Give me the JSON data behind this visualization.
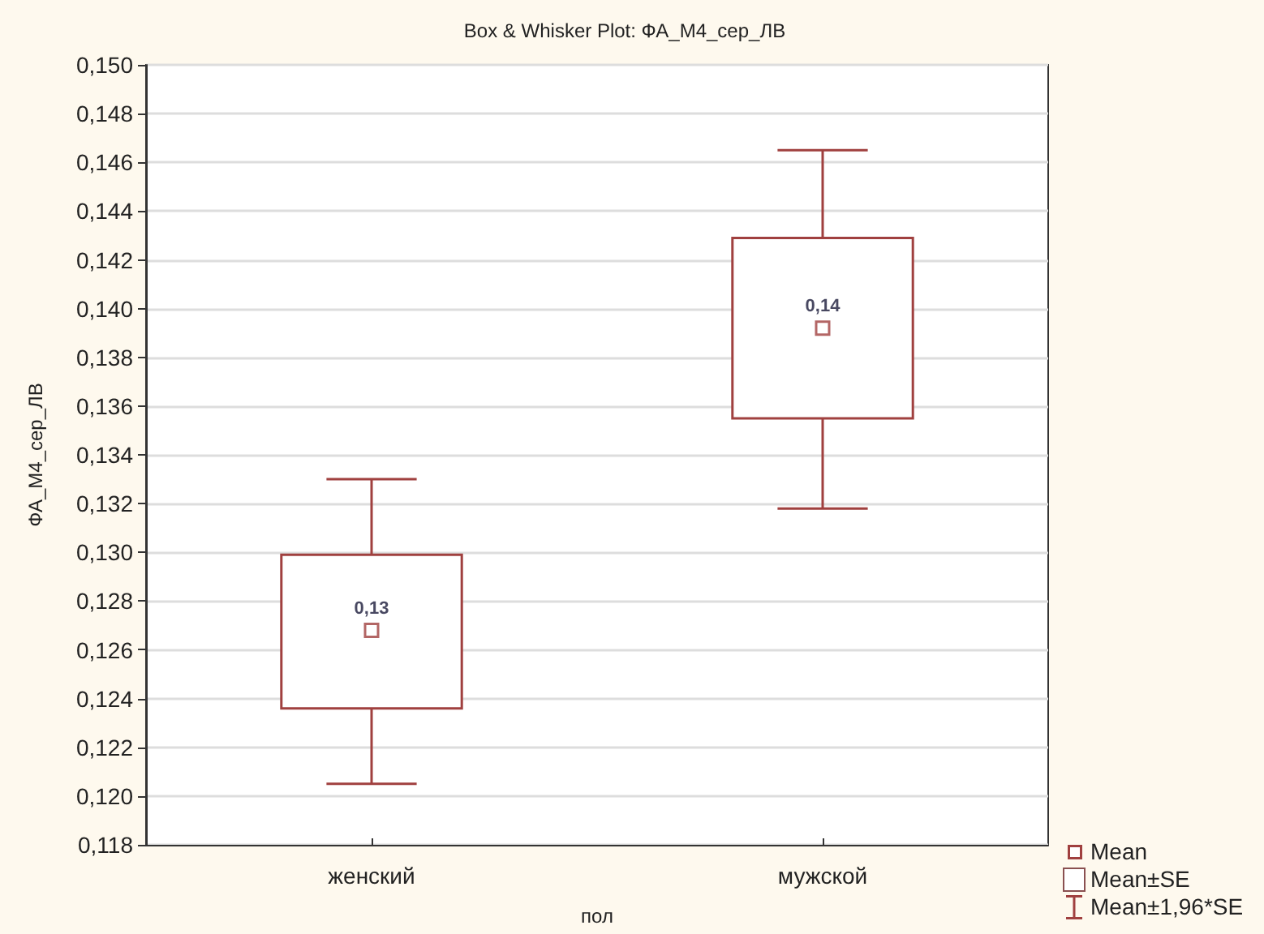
{
  "chart_data": {
    "type": "box",
    "title": "Box & Whisker Plot: ФА_М4_сер_ЛВ",
    "xlabel": "пол",
    "ylabel": "ФА_М4_сер_ЛВ",
    "categories": [
      "женский",
      "мужской"
    ],
    "boxes": [
      {
        "low": 0.1205,
        "q1": 0.1236,
        "q3": 0.1299,
        "high": 0.133,
        "mean": 0.1268
      },
      {
        "low": 0.1318,
        "q1": 0.1355,
        "q3": 0.1429,
        "high": 0.1465,
        "mean": 0.1392
      }
    ],
    "value_labels": [
      "0,13",
      "0,14"
    ],
    "color": "#a0403f",
    "annotations": [
      "Mean",
      "Mean±SE",
      "Mean±1,96*SE"
    ],
    "ylim": [
      0.118,
      0.15
    ],
    "yticks": [
      {
        "value": 0.118,
        "label": "0,118"
      },
      {
        "value": 0.12,
        "label": "0,120"
      },
      {
        "value": 0.122,
        "label": "0,122"
      },
      {
        "value": 0.124,
        "label": "0,124"
      },
      {
        "value": 0.126,
        "label": "0,126"
      },
      {
        "value": 0.128,
        "label": "0,128"
      },
      {
        "value": 0.13,
        "label": "0,130"
      },
      {
        "value": 0.132,
        "label": "0,132"
      },
      {
        "value": 0.134,
        "label": "0,134"
      },
      {
        "value": 0.136,
        "label": "0,136"
      },
      {
        "value": 0.138,
        "label": "0,138"
      },
      {
        "value": 0.14,
        "label": "0,140"
      },
      {
        "value": 0.142,
        "label": "0,142"
      },
      {
        "value": 0.144,
        "label": "0,144"
      },
      {
        "value": 0.146,
        "label": "0,146"
      },
      {
        "value": 0.148,
        "label": "0,148"
      },
      {
        "value": 0.15,
        "label": "0,150"
      }
    ],
    "grid": "y",
    "marker": "square"
  }
}
